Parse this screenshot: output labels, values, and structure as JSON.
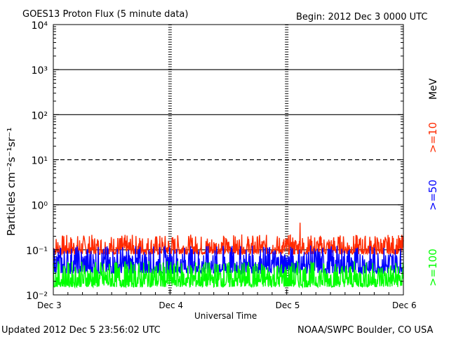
{
  "chart_data": {
    "type": "line",
    "title": "GOES13 Proton Flux (5 minute data)",
    "begin_label": "Begin: 2012 Dec 3 0000 UTC",
    "xlabel": "Universal Time",
    "ylabel": "Particles cm⁻²s⁻¹sr⁻¹",
    "yscale": "log",
    "ylim": [
      0.01,
      10000
    ],
    "xlim": [
      "2012-12-03",
      "2012-12-06"
    ],
    "x_ticks": [
      "Dec 3",
      "Dec 4",
      "Dec 5",
      "Dec 6"
    ],
    "y_ticks": [
      "10⁻²",
      "10⁻¹",
      "10⁰",
      "10¹",
      "10²",
      "10³",
      "10⁴"
    ],
    "unit_label": "MeV",
    "series": [
      {
        "name": ">=10",
        "color": "#ff2a00",
        "baseline": 0.1,
        "range": [
          0.08,
          0.2
        ],
        "peak": 0.4
      },
      {
        "name": ">=50",
        "color": "#0000ff",
        "baseline": 0.045,
        "range": [
          0.03,
          0.11
        ]
      },
      {
        "name": ">=100",
        "color": "#00ff00",
        "baseline": 0.022,
        "range": [
          0.015,
          0.05
        ]
      }
    ],
    "threshold_lines": [
      {
        "value": 0.1,
        "style": "solid",
        "color": "#000000"
      },
      {
        "value": 1,
        "style": "solid",
        "color": "#000000"
      },
      {
        "value": 10,
        "style": "dashed",
        "color": "#000000"
      },
      {
        "value": 100,
        "style": "solid",
        "color": "#000000"
      },
      {
        "value": 1000,
        "style": "solid",
        "color": "#000000"
      }
    ]
  },
  "footer": {
    "updated": "Updated 2012 Dec  5 23:56:02 UTC",
    "source": "NOAA/SWPC Boulder, CO USA"
  }
}
